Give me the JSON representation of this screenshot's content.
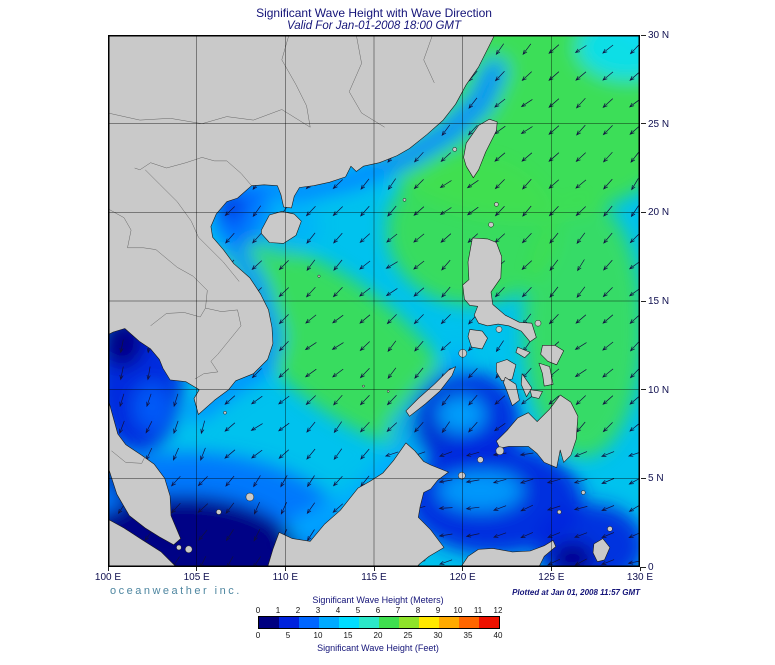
{
  "header": {
    "title": "Significant Wave Height with Wave Direction",
    "subtitle": "Valid For Jan-01-2008 18:00 GMT"
  },
  "map": {
    "lat_labels": [
      "30 N",
      "25 N",
      "20 N",
      "15 N",
      "10 N",
      "5 N",
      "0"
    ],
    "lon_labels": [
      "100 E",
      "105 E",
      "110 E",
      "115 E",
      "120 E",
      "125 E",
      "130 E"
    ],
    "theme": {
      "sea_base": "#00c2ee",
      "land": "#c9c9c9",
      "coast": "#1a1a1a",
      "border_line": "#666666",
      "arrow": "#101040",
      "text_navy": "#131378",
      "brand_teal": "#4e86a0"
    }
  },
  "footer": {
    "brand": "oceanweather inc.",
    "plotted": "Plotted at Jan 01, 2008 11:57 GMT"
  },
  "legend": {
    "meters_label": "Significant Wave Height (Meters)",
    "feet_label": "Significant Wave Height (Feet)",
    "meters_ticks": [
      "0",
      "1",
      "2",
      "3",
      "4",
      "5",
      "6",
      "7",
      "8",
      "9",
      "10",
      "11",
      "12"
    ],
    "feet_ticks": [
      "0",
      "5",
      "10",
      "15",
      "20",
      "25",
      "30",
      "35",
      "40"
    ],
    "colors": [
      "#000080",
      "#0022dd",
      "#0066ff",
      "#00aaff",
      "#00ddff",
      "#2be8c8",
      "#3fdf4f",
      "#8fe32a",
      "#ffe800",
      "#ffaa00",
      "#ff6600",
      "#ee1100"
    ]
  }
}
